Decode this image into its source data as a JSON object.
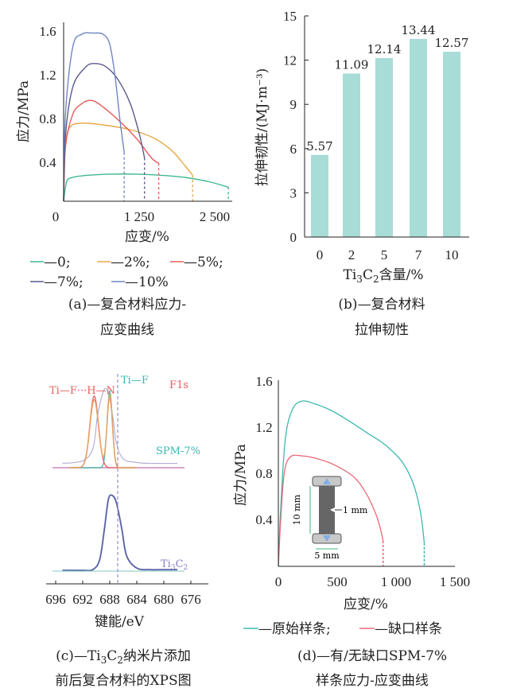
{
  "panel_a": {
    "ylabel": "应力/MPa",
    "xlabel": "应变/%",
    "yticks": [
      "0.4",
      "0.8",
      "1.2",
      "1.6"
    ],
    "xticks": [
      "0",
      "1 250",
      "2 500"
    ],
    "legend": [
      "—0;",
      "—2%;",
      "—5%;",
      "—7%;",
      "—10%"
    ],
    "caption1": "(a)—复合材料应力-",
    "caption2": "应变曲线",
    "colors": {
      "0": "#3fb88e",
      "2": "#e8a848",
      "5": "#e85c5c",
      "7": "#5a5a8e",
      "10": "#6f86c2"
    }
  },
  "panel_b": {
    "ylabel": "拉伸韧性/(MJ·m⁻³)",
    "yticks": [
      "0",
      "3",
      "6",
      "9",
      "12",
      "15"
    ],
    "xlabel_main": "Ti",
    "xlabel_sub1": "3",
    "xlabel_mid": "C",
    "xlabel_sub2": "2",
    "xlabel_rest": "含量/%",
    "caption1": "(b)—复合材料",
    "caption2": "拉伸韧性",
    "bar_color": "#a8dcd6"
  },
  "panel_c": {
    "xlabel": "键能/eV",
    "xticks": [
      "696",
      "692",
      "688",
      "684",
      "680",
      "676"
    ],
    "label_tif_h_n": "Ti—F···H—N",
    "label_tif": "Ti—F",
    "label_f1s": "F1s",
    "label_spm": "SPM-7%",
    "label_ti": "Ti",
    "label_ti_sub1": "3",
    "label_c": "C",
    "label_c_sub2": "2",
    "caption1_pre": "(c)—Ti",
    "caption1_sub1": "3",
    "caption1_mid": "C",
    "caption1_sub2": "2",
    "caption1_post": "纳米片添加",
    "caption2": "前后复合材料的XPS图"
  },
  "panel_d": {
    "ylabel": "应力/MPa",
    "xlabel": "应变/%",
    "yticks": [
      "0.4",
      "0.8",
      "1.2",
      "1.6"
    ],
    "xticks": [
      "0",
      "500",
      "1 000",
      "1 500"
    ],
    "legend_original": "—原始样条;",
    "legend_notch": "—缺口样条",
    "dim_10mm": "10 mm",
    "dim_1mm": "1 mm",
    "dim_5mm": "5 mm",
    "caption1": "(d)—有/无缺口SPM-7%",
    "caption2": "样条应力-应变曲线",
    "colors": {
      "original": "#3cb8b0",
      "notch": "#e86a7a"
    }
  },
  "chart_data": [
    {
      "type": "line",
      "id": "a",
      "xlabel": "应变/%",
      "ylabel": "应力/MPa",
      "xlim": [
        0,
        2700
      ],
      "ylim": [
        0,
        1.65
      ],
      "series": [
        {
          "name": "0",
          "x": [
            0,
            50,
            150,
            400,
            800,
            1200,
            1600,
            2000,
            2400,
            2720
          ],
          "y": [
            0,
            0.18,
            0.22,
            0.24,
            0.25,
            0.25,
            0.24,
            0.22,
            0.18,
            0.13
          ],
          "end_strain": 2720
        },
        {
          "name": "2%",
          "x": [
            0,
            30,
            100,
            300,
            700,
            1100,
            1500,
            1800,
            2000,
            2130
          ],
          "y": [
            0,
            0.5,
            0.68,
            0.72,
            0.7,
            0.66,
            0.58,
            0.46,
            0.33,
            0.24
          ],
          "end_strain": 2130
        },
        {
          "name": "5%",
          "x": [
            0,
            30,
            150,
            300,
            450,
            600,
            900,
            1200,
            1450,
            1570
          ],
          "y": [
            0,
            0.5,
            0.8,
            0.9,
            0.93,
            0.89,
            0.75,
            0.58,
            0.4,
            0.35
          ],
          "end_strain": 1570
        },
        {
          "name": "7%",
          "x": [
            0,
            30,
            150,
            350,
            500,
            700,
            900,
            1100,
            1250,
            1335
          ],
          "y": [
            0,
            0.6,
            1.05,
            1.23,
            1.27,
            1.24,
            1.12,
            0.9,
            0.62,
            0.4
          ],
          "end_strain": 1335
        },
        {
          "name": "10%",
          "x": [
            0,
            30,
            150,
            300,
            500,
            650,
            760,
            850,
            930,
            1000
          ],
          "y": [
            0,
            0.8,
            1.42,
            1.54,
            1.55,
            1.54,
            1.45,
            1.15,
            0.75,
            0.45
          ],
          "end_strain": 1000
        }
      ]
    },
    {
      "type": "bar",
      "id": "b",
      "ylabel": "拉伸韧性/(MJ·m⁻³)",
      "categories": [
        "0",
        "2",
        "5",
        "7",
        "10"
      ],
      "values": [
        5.57,
        11.09,
        12.14,
        13.44,
        12.57
      ],
      "labels": [
        "5.57",
        "11.09",
        "12.14",
        "13.44",
        "12.57"
      ],
      "ylim": [
        0,
        15
      ]
    },
    {
      "type": "line",
      "id": "c",
      "xlabel": "键能/eV",
      "xlim": [
        697,
        675
      ],
      "series": [
        {
          "name": "SPM-7%",
          "x": [
            695,
            692,
            690.5,
            689.8,
            689,
            688.5,
            688,
            687.5,
            687,
            686,
            684,
            682,
            680,
            678
          ],
          "y": [
            0.05,
            0.08,
            0.22,
            0.6,
            0.86,
            0.9,
            0.78,
            0.55,
            0.28,
            0.1,
            0.06,
            0.05,
            0.05,
            0.05
          ]
        },
        {
          "name": "Ti3C2",
          "x": [
            695,
            692,
            690.5,
            689.5,
            688.8,
            688.2,
            687.6,
            687,
            686.2,
            685.5,
            684,
            682,
            680,
            678
          ],
          "y": [
            0.01,
            0.01,
            0.02,
            0.15,
            0.55,
            0.95,
            1.0,
            0.9,
            0.55,
            0.2,
            0.04,
            0.02,
            0.02,
            0.02
          ]
        }
      ]
    },
    {
      "type": "line",
      "id": "d",
      "xlabel": "应变/%",
      "ylabel": "应力/MPa",
      "xlim": [
        0,
        1500
      ],
      "ylim": [
        0,
        1.6
      ],
      "series": [
        {
          "name": "原始样条",
          "x": [
            0,
            20,
            60,
            120,
            200,
            300,
            450,
            600,
            750,
            900,
            1050,
            1150,
            1210,
            1240
          ],
          "y": [
            0,
            0.5,
            1.1,
            1.35,
            1.42,
            1.4,
            1.34,
            1.25,
            1.15,
            1.05,
            0.9,
            0.7,
            0.45,
            0.2
          ],
          "end_strain": 1240
        },
        {
          "name": "缺口样条",
          "x": [
            0,
            20,
            50,
            100,
            200,
            350,
            500,
            650,
            750,
            820,
            860,
            890
          ],
          "y": [
            0,
            0.4,
            0.8,
            0.94,
            0.95,
            0.92,
            0.86,
            0.76,
            0.62,
            0.47,
            0.35,
            0.22
          ],
          "end_strain": 890
        }
      ]
    }
  ]
}
